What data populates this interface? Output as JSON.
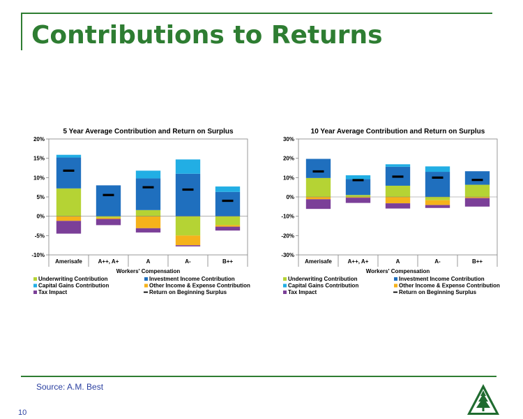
{
  "page": {
    "title": "Contributions to Returns",
    "source": "Source: A.M. Best",
    "page_number": "10"
  },
  "colors": {
    "underwriting": "#b5d334",
    "investment": "#1f6fbe",
    "capital_gains": "#22aee4",
    "other_income": "#f5b21b",
    "tax": "#7b3f98",
    "return_marker": "#000000",
    "title_green": "#2e7d32"
  },
  "chart_data": [
    {
      "type": "bar",
      "stacked": true,
      "title": "5 Year Average Contribution and Return on Surplus",
      "xlabel": "Workers' Compensation",
      "categories": [
        "Amerisafe",
        "A++, A+",
        "A",
        "A-",
        "B++"
      ],
      "ylim": [
        -10,
        20
      ],
      "yticks": [
        -10,
        -5,
        0,
        5,
        10,
        15,
        20
      ],
      "ytick_labels": [
        "-10%",
        "-5%",
        "0%",
        "5%",
        "10%",
        "15%",
        "20%"
      ],
      "grid": false,
      "legend_placement": "bottom",
      "series": [
        {
          "name": "Underwriting Contribution",
          "key": "underwriting",
          "values": [
            7.2,
            -0.4,
            1.6,
            -5.0,
            -2.3
          ]
        },
        {
          "name": "Investment Income Contribution",
          "key": "investment",
          "values": [
            8.0,
            8.0,
            8.2,
            11.0,
            6.3
          ]
        },
        {
          "name": "Capital Gains Contribution",
          "key": "capital_gains",
          "values": [
            0.7,
            0.0,
            2.0,
            3.7,
            1.4
          ]
        },
        {
          "name": "Other Income & Expense Contribution",
          "key": "other_income",
          "values": [
            -1.2,
            -0.3,
            -3.1,
            -2.5,
            -0.4
          ]
        },
        {
          "name": "Tax Impact",
          "key": "tax",
          "values": [
            -3.3,
            -1.6,
            -1.1,
            -0.3,
            -1.0
          ]
        }
      ],
      "return_on_surplus": {
        "name": "Return on Beginning Surplus",
        "values": [
          11.8,
          5.5,
          7.5,
          6.9,
          4.0
        ]
      },
      "legend": [
        {
          "label": "Underwriting Contribution",
          "key": "underwriting",
          "marker": "square"
        },
        {
          "label": "Investment Income Contribution",
          "key": "investment",
          "marker": "square"
        },
        {
          "label": "Capital Gains Contribution",
          "key": "capital_gains",
          "marker": "square"
        },
        {
          "label": "Other Income & Expense Contribution",
          "key": "other_income",
          "marker": "square"
        },
        {
          "label": "Tax Impact",
          "key": "tax",
          "marker": "square"
        },
        {
          "label": "Return on Beginning Surplus",
          "key": "return_marker",
          "marker": "dash"
        }
      ]
    },
    {
      "type": "bar",
      "stacked": true,
      "title": "10 Year Average Contribution and Return on Surplus",
      "xlabel": "Workers' Compensation",
      "categories": [
        "Amerisafe",
        "A++, A+",
        "A",
        "A-",
        "B++"
      ],
      "ylim": [
        -30,
        30
      ],
      "yticks": [
        -30,
        -20,
        -10,
        0,
        10,
        20,
        30
      ],
      "ytick_labels": [
        "-30%",
        "-20%",
        "-10%",
        "0%",
        "10%",
        "20%",
        "30%"
      ],
      "grid": false,
      "legend_placement": "bottom",
      "series": [
        {
          "name": "Underwriting Contribution",
          "key": "underwriting",
          "values": [
            9.8,
            1.0,
            5.8,
            -1.7,
            6.3
          ]
        },
        {
          "name": "Investment Income Contribution",
          "key": "investment",
          "values": [
            9.9,
            8.2,
            9.8,
            13.0,
            7.0
          ]
        },
        {
          "name": "Capital Gains Contribution",
          "key": "capital_gains",
          "values": [
            0.0,
            2.0,
            1.3,
            2.8,
            0.0
          ]
        },
        {
          "name": "Other Income & Expense Contribution",
          "key": "other_income",
          "values": [
            -1.2,
            -0.4,
            -3.3,
            -2.5,
            -0.6
          ]
        },
        {
          "name": "Tax Impact",
          "key": "tax",
          "values": [
            -5.0,
            -2.7,
            -2.7,
            -1.5,
            -4.4
          ]
        }
      ],
      "return_on_surplus": {
        "name": "Return on Beginning Surplus",
        "values": [
          13.2,
          8.7,
          10.5,
          10.0,
          8.8
        ]
      },
      "legend": [
        {
          "label": "Underwriting Contribution",
          "key": "underwriting",
          "marker": "square"
        },
        {
          "label": "Investment Income Contribution",
          "key": "investment",
          "marker": "square"
        },
        {
          "label": "Capital Gains Contribution",
          "key": "capital_gains",
          "marker": "square"
        },
        {
          "label": "Other Income & Expense Contribution",
          "key": "other_income",
          "marker": "square"
        },
        {
          "label": "Tax Impact",
          "key": "tax",
          "marker": "square"
        },
        {
          "label": "Return on Beginning Surplus",
          "key": "return_marker",
          "marker": "dash"
        }
      ]
    }
  ]
}
